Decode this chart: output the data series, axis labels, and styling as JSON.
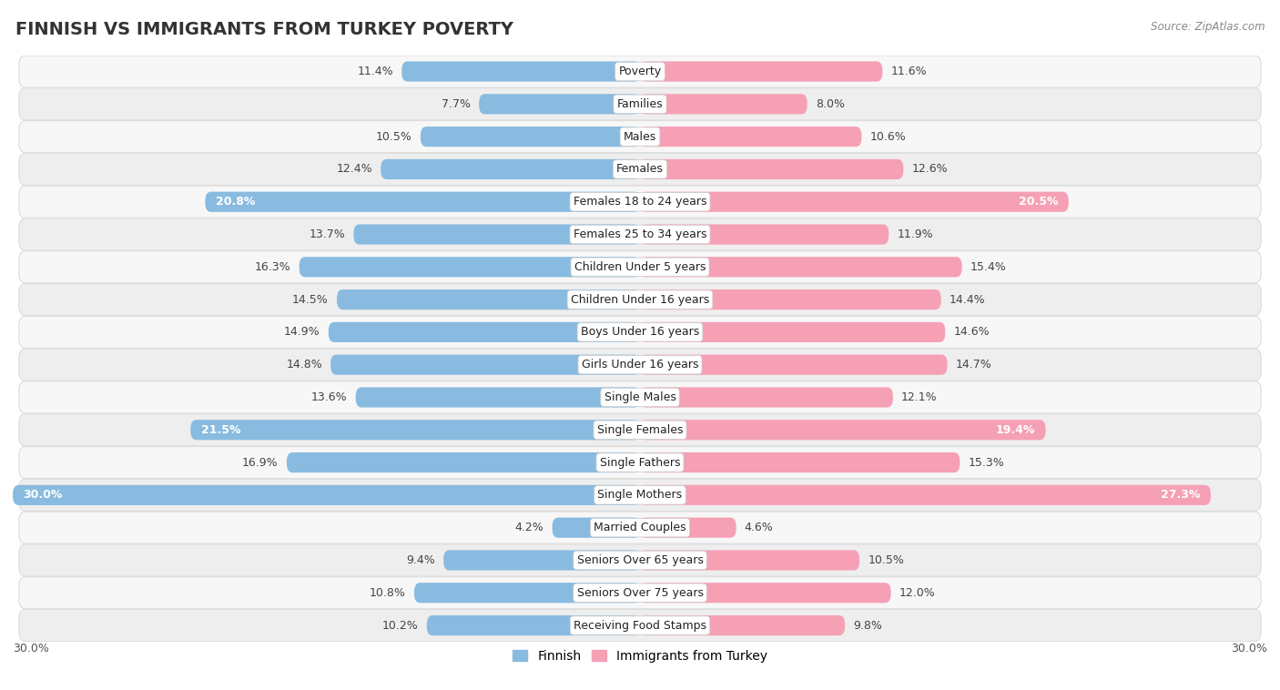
{
  "title": "FINNISH VS IMMIGRANTS FROM TURKEY POVERTY",
  "source": "Source: ZipAtlas.com",
  "categories": [
    "Poverty",
    "Families",
    "Males",
    "Females",
    "Females 18 to 24 years",
    "Females 25 to 34 years",
    "Children Under 5 years",
    "Children Under 16 years",
    "Boys Under 16 years",
    "Girls Under 16 years",
    "Single Males",
    "Single Females",
    "Single Fathers",
    "Single Mothers",
    "Married Couples",
    "Seniors Over 65 years",
    "Seniors Over 75 years",
    "Receiving Food Stamps"
  ],
  "finnish_values": [
    11.4,
    7.7,
    10.5,
    12.4,
    20.8,
    13.7,
    16.3,
    14.5,
    14.9,
    14.8,
    13.6,
    21.5,
    16.9,
    30.0,
    4.2,
    9.4,
    10.8,
    10.2
  ],
  "turkey_values": [
    11.6,
    8.0,
    10.6,
    12.6,
    20.5,
    11.9,
    15.4,
    14.4,
    14.6,
    14.7,
    12.1,
    19.4,
    15.3,
    27.3,
    4.6,
    10.5,
    12.0,
    9.8
  ],
  "finnish_color": "#89BBE0",
  "turkey_color": "#F5A0B5",
  "axis_max": 30.0,
  "title_fontsize": 14,
  "value_fontsize": 9,
  "category_fontsize": 9,
  "legend_fontsize": 10,
  "background_color": "#FFFFFF",
  "row_color_odd": "#F7F7F7",
  "row_color_even": "#EEEEEE",
  "label_threshold": 18.0
}
